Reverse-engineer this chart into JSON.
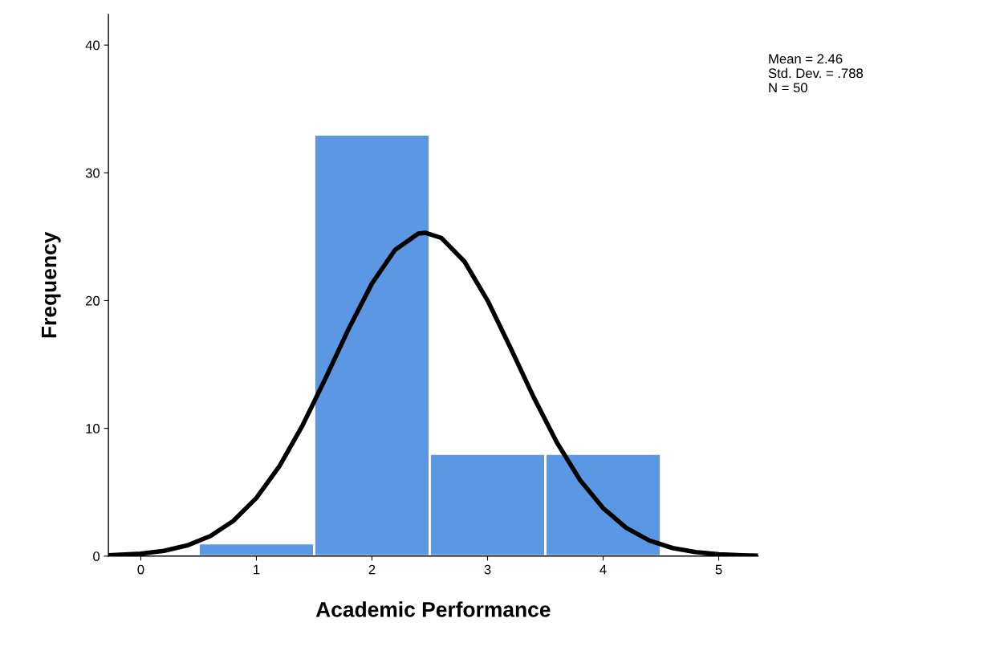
{
  "chart_data": {
    "type": "histogram",
    "xlabel": "Academic Performance",
    "ylabel": "Frequency",
    "bins": [
      0.5,
      1.5,
      2.5,
      3.5,
      4.5
    ],
    "values": [
      1,
      33,
      8,
      8
    ],
    "color": "#5b97e3",
    "series": [
      {
        "type": "line",
        "color": "#000000",
        "x": [
          -0.28,
          0.0,
          0.2,
          0.4,
          0.6,
          0.8,
          1.0,
          1.2,
          1.4,
          1.6,
          1.8,
          2.0,
          2.2,
          2.4,
          2.46,
          2.6,
          2.8,
          3.0,
          3.2,
          3.4,
          3.6,
          3.8,
          4.0,
          4.2,
          4.4,
          4.6,
          4.8,
          5.0,
          5.2,
          5.34
        ],
        "values": [
          0.06,
          0.19,
          0.41,
          0.83,
          1.56,
          2.75,
          4.55,
          7.05,
          10.24,
          13.95,
          17.82,
          21.34,
          23.97,
          25.24,
          25.31,
          24.91,
          23.06,
          20.01,
          16.28,
          12.42,
          8.89,
          5.96,
          3.75,
          2.21,
          1.22,
          0.63,
          0.31,
          0.14,
          0.06,
          0.03
        ]
      }
    ],
    "xlim": [
      -0.28,
      5.34
    ],
    "ylim": [
      0,
      42.4
    ],
    "xticks": [
      0,
      1,
      2,
      3,
      4,
      5
    ],
    "yticks": [
      0,
      10,
      20,
      30,
      40
    ],
    "grid": false,
    "legend": false,
    "annotations": [
      "Mean = 2.46",
      "Std. Dev. = .788",
      "N = 50"
    ]
  }
}
